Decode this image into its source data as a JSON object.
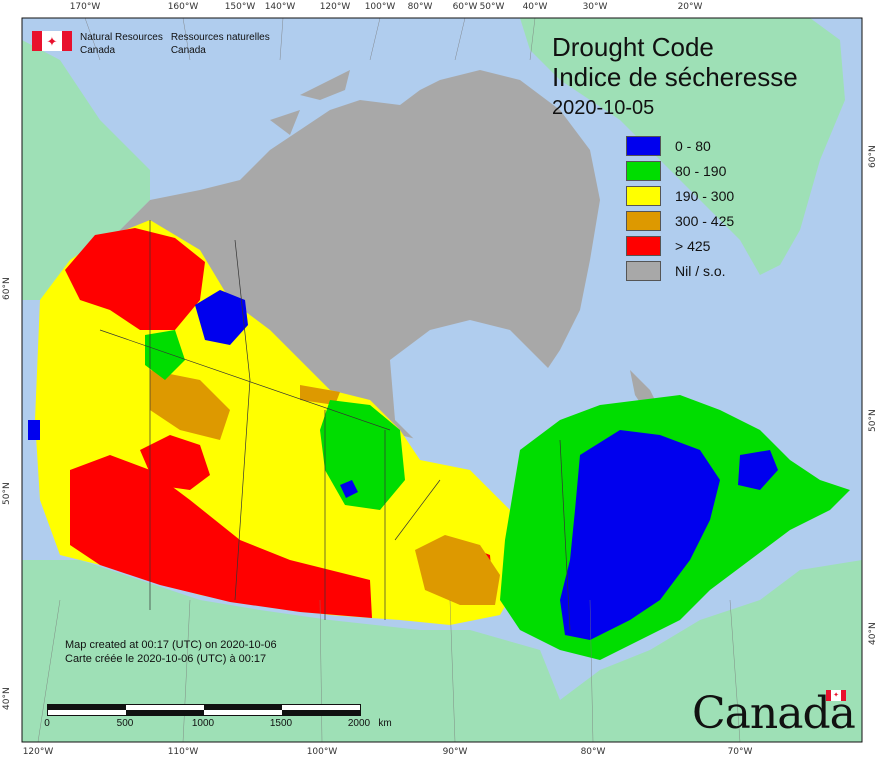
{
  "title": {
    "en": "Drought Code",
    "fr": "Indice de sécheresse",
    "date": "2020-10-05"
  },
  "department": {
    "en": [
      "Natural Resources",
      "Canada"
    ],
    "fr": [
      "Ressources naturelles",
      "Canada"
    ]
  },
  "legend": [
    {
      "label": "0 - 80",
      "color": "#0000ee"
    },
    {
      "label": "80 - 190",
      "color": "#00dd00"
    },
    {
      "label": "190 - 300",
      "color": "#ffff00"
    },
    {
      "label": "300 - 425",
      "color": "#dd9900"
    },
    {
      "label": "> 425",
      "color": "#ff0000"
    },
    {
      "label": "Nil / s.o.",
      "color": "#a8a8a8"
    }
  ],
  "credits": {
    "en": "Map created at 00:17 (UTC) on 2020-10-06",
    "fr": "Carte créée le 2020-10-06 (UTC) à 00:17"
  },
  "scale": {
    "labels": [
      "0",
      "500",
      "1000",
      "1500",
      "2000"
    ],
    "unit": "km"
  },
  "graticule": {
    "top": [
      "170°W",
      "160°W",
      "150°W",
      "140°W",
      "120°W",
      "100°W",
      "80°W",
      "60°W",
      "50°W",
      "40°W",
      "30°W",
      "20°W"
    ],
    "bottom": [
      "120°W",
      "110°W",
      "100°W",
      "90°W",
      "80°W",
      "70°W"
    ],
    "left": [
      "60°N",
      "50°N",
      "40°N"
    ],
    "right": [
      "60°N",
      "50°N",
      "40°N"
    ]
  },
  "colors": {
    "ocean": "#b0cdee",
    "land_outside": "#9ee0b6",
    "nil": "#a8a8a8",
    "very_low": "#0000ee",
    "low": "#00dd00",
    "moderate": "#ffff00",
    "high": "#dd9900",
    "extreme": "#ff0000"
  },
  "wordmark": "Canada"
}
